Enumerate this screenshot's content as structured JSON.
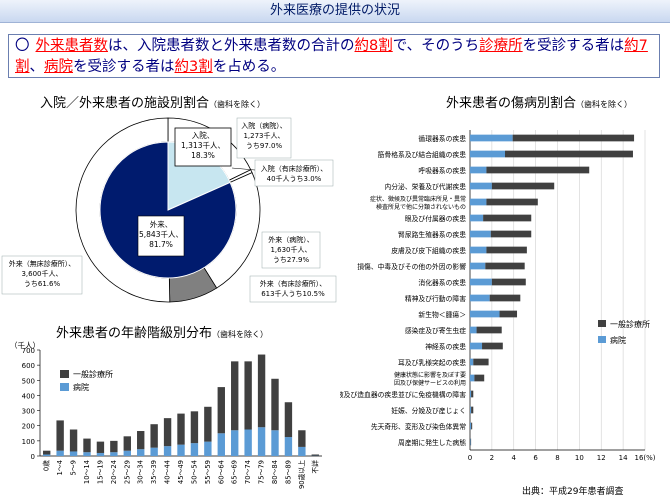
{
  "header": {
    "title": "外来医療の提供の状況"
  },
  "summary": {
    "bullet": "〇",
    "p1": "外来患者数",
    "p2": "は、入院患者数と外来患者数の合計の",
    "p3": "約8割",
    "p4": "で、そのうち",
    "p5": "診療所",
    "p6": "を受診する者は",
    "p7": "約7割",
    "p8": "、",
    "p9": "病院",
    "p10": "を受診する者は",
    "p11": "約3割",
    "p12": "を占める。"
  },
  "pie": {
    "title": "入院／外来患者の施設別割合",
    "note": "（歯科を除く）",
    "inner_labels": {
      "inpatient": [
        "入院、",
        "1,313千人、",
        "18.3%"
      ],
      "outpatient": [
        "外来、",
        "5,843千人、",
        "81.7%"
      ]
    },
    "outer_labels": {
      "inp_hosp": [
        "入院（病院）、",
        "1,273千人、",
        "うち97.0%"
      ],
      "inp_clinic": [
        "入院（有床診療所）、",
        "40千人うち3.0%"
      ],
      "out_hosp": [
        "外来（病院）、",
        "1,630千人、",
        "うち27.9%"
      ],
      "out_bed_clinic": [
        "外来（有床診療所）、",
        "613千人うち10.5%"
      ],
      "out_nobed_clinic": [
        "外来（無床診療所）、",
        "3,600千人、",
        "うち61.6%"
      ]
    }
  },
  "age": {
    "title": "外来患者の年齢階級別分布",
    "note": "（歯科を除く）",
    "unit": "（千人）",
    "legend": [
      "一般診療所",
      "病院"
    ],
    "categories": [
      "0歳",
      "1～4",
      "5～9",
      "10～14",
      "15～19",
      "20～24",
      "25～29",
      "30～34",
      "35～39",
      "40～44",
      "45～49",
      "50～54",
      "55～59",
      "60～64",
      "65～69",
      "70～74",
      "75～79",
      "80～84",
      "85～89",
      "90歳以上",
      "不詳"
    ]
  },
  "disease": {
    "title": "外来患者の傷病別割合",
    "note": "（歯科を除く）",
    "legend": [
      "一般診療所",
      "病院"
    ],
    "unit": "16(%)",
    "source": "出典：平成29年患者調査"
  },
  "colors": {
    "navy": "#001b6e",
    "lightblue": "#c7e6f0",
    "gray": "#808080",
    "dark": "#404040",
    "blue": "#5b9bd5"
  },
  "chart_data": [
    {
      "type": "pie",
      "title": "入院／外来患者の施設別割合",
      "inner": [
        {
          "label": "入院",
          "value_thousand": 1313,
          "percent": 18.3
        },
        {
          "label": "外来",
          "value_thousand": 5843,
          "percent": 81.7
        }
      ],
      "outer": [
        {
          "label": "入院（病院）",
          "value_thousand": 1273,
          "share": "うち97.0%"
        },
        {
          "label": "入院（有床診療所）",
          "value_thousand": 40,
          "share": "うち3.0%"
        },
        {
          "label": "外来（病院）",
          "value_thousand": 1630,
          "share": "うち27.9%"
        },
        {
          "label": "外来（有床診療所）",
          "value_thousand": 613,
          "share": "うち10.5%"
        },
        {
          "label": "外来（無床診療所）",
          "value_thousand": 3600,
          "share": "うち61.6%"
        }
      ]
    },
    {
      "type": "bar",
      "title": "外来患者の年齢階級別分布",
      "ylabel": "（千人）",
      "ylim": [
        0,
        700
      ],
      "yticks": [
        0,
        100,
        200,
        300,
        400,
        500,
        600,
        700
      ],
      "categories": [
        "0歳",
        "1～4",
        "5～9",
        "10～14",
        "15～19",
        "20～24",
        "25～29",
        "30～34",
        "35～39",
        "40～44",
        "45～49",
        "50～54",
        "55～59",
        "60～64",
        "65～69",
        "70～74",
        "75～79",
        "80～84",
        "85～89",
        "90歳以上",
        "不詳"
      ],
      "series": [
        {
          "name": "一般診療所",
          "values": [
            25,
            200,
            145,
            90,
            75,
            75,
            95,
            120,
            155,
            185,
            205,
            210,
            230,
            305,
            455,
            450,
            480,
            340,
            230,
            110,
            8
          ]
        },
        {
          "name": "病院",
          "values": [
            10,
            35,
            30,
            25,
            20,
            25,
            35,
            45,
            55,
            65,
            75,
            85,
            95,
            150,
            170,
            175,
            190,
            170,
            125,
            60,
            2
          ]
        }
      ]
    },
    {
      "type": "bar",
      "orientation": "horizontal",
      "title": "外来患者の傷病別割合",
      "xlabel": "(%)",
      "xlim": [
        0,
        16
      ],
      "xticks": [
        0,
        2,
        4,
        6,
        8,
        10,
        12,
        14,
        16
      ],
      "categories": [
        "循環器系の疾患",
        "筋骨格系及び結合組織の疾患",
        "呼吸器系の疾患",
        "内分泌、栄養及び代謝疾患",
        "症状、徴候及び異常臨床所見・異常検査所見で他に分類されないもの",
        "眼及び付属器の疾患",
        "腎尿路生殖器系の疾患",
        "皮膚及び皮下組織の疾患",
        "損傷、中毒及びその他の外因の影響",
        "消化器系の疾患",
        "精神及び行動の障害",
        "新生物＜腫瘍＞",
        "感染症及び寄生虫症",
        "神経系の疾患",
        "耳及び乳様突起の疾患",
        "健康状態に影響を及ぼす要因及び保健サービスの利用",
        "血液及び造血器の疾患並びに免疫機構の障害",
        "妊娠、分娩及び産じょく",
        "先天奇形、変形及び染色体異常",
        "周産期に発生した病態"
      ],
      "series": [
        {
          "name": "一般診療所",
          "values": [
            11.1,
            11.7,
            9.4,
            5.7,
            4.7,
            4.4,
            3.7,
            3.7,
            3.6,
            3.1,
            2.8,
            1.6,
            2.3,
            1.9,
            1.4,
            0.9,
            0.2,
            0.2,
            0.1,
            0.05
          ]
        },
        {
          "name": "病院",
          "values": [
            3.9,
            3.2,
            1.5,
            2.0,
            1.5,
            1.2,
            1.9,
            1.5,
            1.4,
            2.0,
            1.8,
            2.7,
            0.6,
            1.1,
            0.3,
            0.4,
            0.1,
            0.1,
            0.1,
            0.05
          ]
        }
      ]
    }
  ]
}
